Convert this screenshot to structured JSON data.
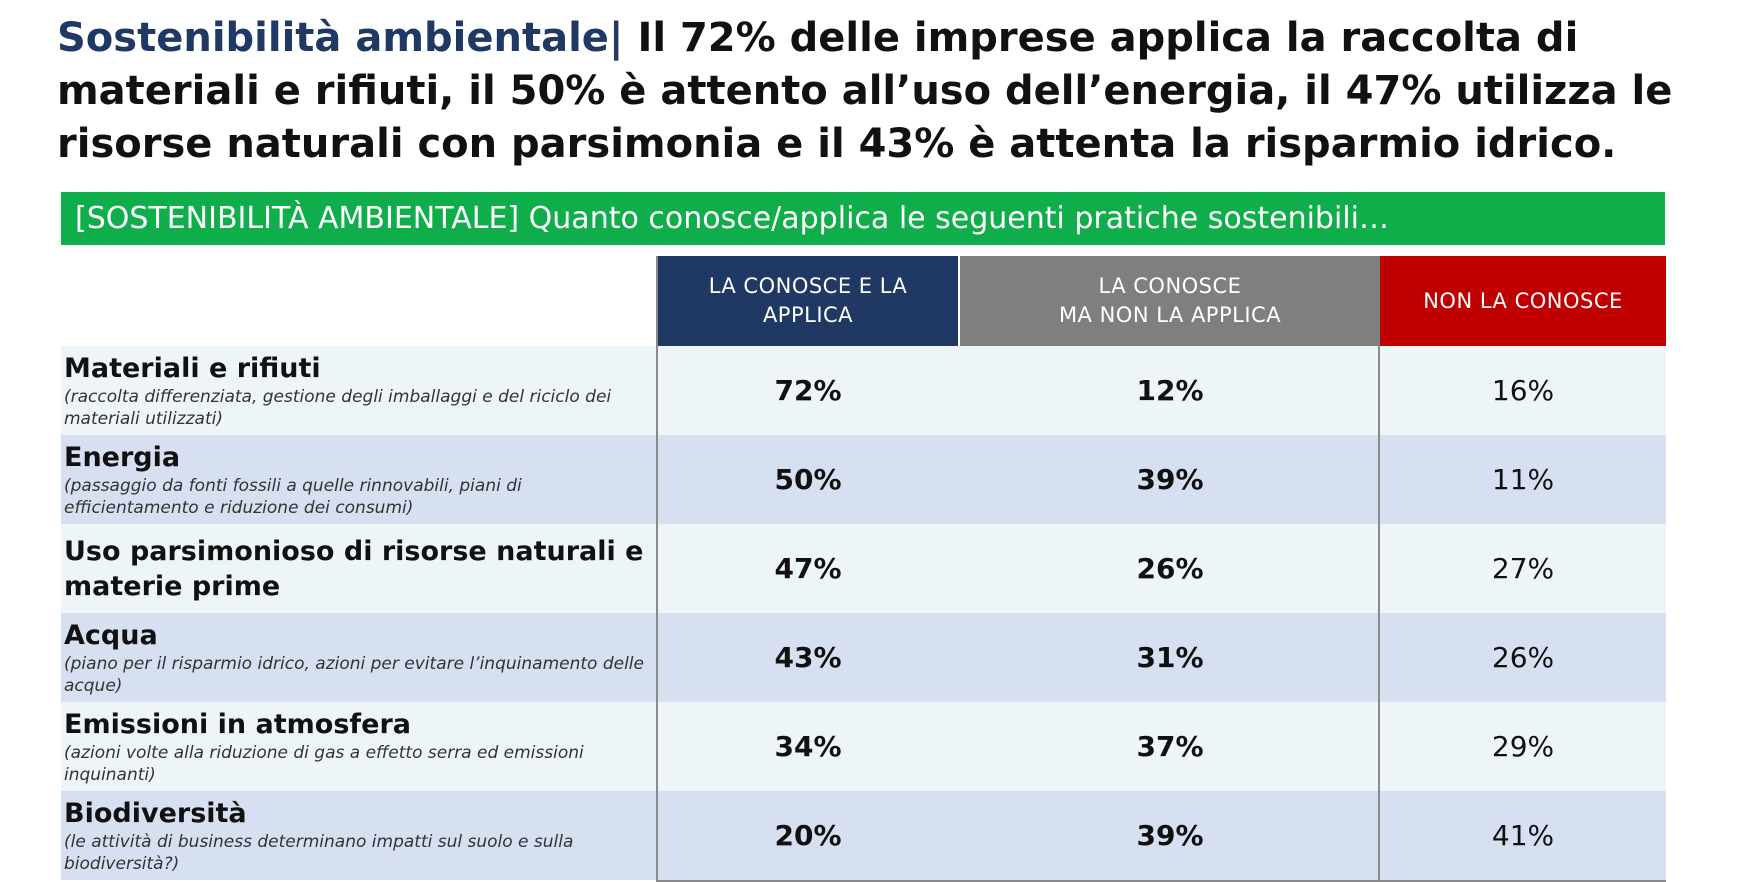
{
  "headline": {
    "lead": "Sostenibilità ambientale| ",
    "text": "Il 72% delle imprese applica la raccolta di materiali e rifiuti, il 50% è attento all’uso dell’energia,  il 47% utilizza le risorse naturali con parsimonia e il 43% è attenta la risparmio idrico."
  },
  "subtitle": "[SOSTENIBILITÀ AMBIENTALE] Quanto conosce/applica le seguenti pratiche sostenibili…",
  "columns": {
    "c1_line1": "LA CONOSCE E LA",
    "c1_line2": "APPLICA",
    "c2_line1": "LA CONOSCE",
    "c2_line2": "MA NON LA APPLICA",
    "c3": "NON LA CONOSCE"
  },
  "colors": {
    "title_blue": "#1f3864",
    "green_bar": "#0fae4b",
    "col_applica": "#1f3864",
    "col_non_applica": "#7f7f7f",
    "col_non_conosce": "#c00000",
    "row_light": "#eef5f9",
    "row_dark": "#d6e0f0"
  },
  "rows": [
    {
      "title": "Materiali e rifiuti",
      "desc": "(raccolta differenziata, gestione degli imballaggi e del riciclo dei materiali utilizzati)",
      "applica": "72%",
      "non_applica": "12%",
      "non_conosce": "16%"
    },
    {
      "title": "Energia",
      "desc": "(passaggio da fonti fossili a quelle rinnovabili, piani di efficientamento e riduzione dei consumi)",
      "applica": "50%",
      "non_applica": "39%",
      "non_conosce": "11%"
    },
    {
      "title": "Uso parsimonioso di risorse naturali e materie prime",
      "desc": "",
      "applica": "47%",
      "non_applica": "26%",
      "non_conosce": "27%"
    },
    {
      "title": "Acqua",
      "desc": "(piano per il risparmio idrico, azioni per evitare l’inquinamento delle acque)",
      "applica": "43%",
      "non_applica": "31%",
      "non_conosce": "26%"
    },
    {
      "title": "Emissioni in atmosfera",
      "desc": "(azioni volte alla riduzione di gas a effetto serra ed emissioni inquinanti)",
      "applica": "34%",
      "non_applica": "37%",
      "non_conosce": "29%"
    },
    {
      "title": "Biodiversità",
      "desc": "(le attività di business determinano impatti sul suolo e sulla biodiversità?)",
      "applica": "20%",
      "non_applica": "39%",
      "non_conosce": "41%"
    }
  ]
}
